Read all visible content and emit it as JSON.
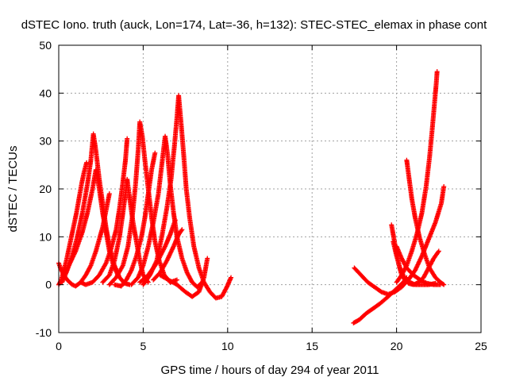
{
  "chart_data": {
    "type": "scatter",
    "title": "dSTEC Iono. truth (auck, Lon=174, Lat=-36, h=132): STEC-STEC_elemax in phase cont",
    "xlabel": "GPS time / hours of day 294 of year 2011",
    "ylabel": "dSTEC  / TECUs",
    "xlim": [
      0,
      25
    ],
    "ylim": [
      -10,
      50
    ],
    "xticks": [
      0,
      5,
      10,
      15,
      20,
      25
    ],
    "yticks": [
      -10,
      0,
      10,
      20,
      30,
      40,
      50
    ],
    "xtick_labels": [
      "0",
      "5",
      "10",
      "15",
      "20",
      "25"
    ],
    "ytick_labels": [
      "-10",
      "0",
      "10",
      "20",
      "30",
      "40",
      "50"
    ],
    "grid": true,
    "legend": "none",
    "marker": "plus",
    "color": "#ff0000",
    "series": [
      {
        "points": [
          [
            0.0,
            4.5
          ],
          [
            0.1,
            3.5
          ],
          [
            0.3,
            2.0
          ],
          [
            0.5,
            1.0
          ],
          [
            0.8,
            0.0
          ],
          [
            1.0,
            -0.3
          ],
          [
            1.3,
            0.5
          ],
          [
            1.6,
            2.0
          ],
          [
            1.9,
            4.0
          ],
          [
            2.2,
            7.0
          ],
          [
            2.4,
            9.5
          ],
          [
            2.6,
            12.0
          ],
          [
            2.8,
            15.5
          ],
          [
            3.0,
            19.0
          ]
        ]
      },
      {
        "points": [
          [
            0.0,
            0.0
          ],
          [
            0.15,
            1.0
          ],
          [
            0.3,
            3.0
          ],
          [
            0.45,
            5.0
          ],
          [
            0.6,
            7.5
          ],
          [
            0.75,
            10.0
          ],
          [
            0.9,
            12.5
          ],
          [
            1.05,
            15.0
          ],
          [
            1.2,
            18.0
          ],
          [
            1.35,
            21.0
          ],
          [
            1.5,
            23.5
          ],
          [
            1.65,
            25.5
          ]
        ]
      },
      {
        "points": [
          [
            0.2,
            0.5
          ],
          [
            0.5,
            3.0
          ],
          [
            0.8,
            6.0
          ],
          [
            1.1,
            10.0
          ],
          [
            1.4,
            15.0
          ],
          [
            1.7,
            21.0
          ],
          [
            1.9,
            26.0
          ],
          [
            2.05,
            31.5
          ],
          [
            2.2,
            28.0
          ],
          [
            2.4,
            22.0
          ],
          [
            2.6,
            17.0
          ],
          [
            2.8,
            12.0
          ],
          [
            3.0,
            8.0
          ],
          [
            3.3,
            4.0
          ],
          [
            3.6,
            1.5
          ],
          [
            3.9,
            0.3
          ],
          [
            4.2,
            0.0
          ]
        ]
      },
      {
        "points": [
          [
            0.3,
            2.0
          ],
          [
            0.6,
            4.0
          ],
          [
            1.0,
            7.0
          ],
          [
            1.4,
            11.0
          ],
          [
            1.7,
            15.0
          ],
          [
            2.0,
            20.0
          ],
          [
            2.2,
            24.0
          ],
          [
            2.4,
            20.0
          ],
          [
            2.6,
            15.0
          ],
          [
            2.8,
            11.0
          ],
          [
            3.0,
            7.0
          ],
          [
            3.2,
            4.5
          ],
          [
            3.5,
            2.0
          ]
        ]
      },
      {
        "points": [
          [
            1.3,
            0.5
          ],
          [
            1.6,
            0.0
          ],
          [
            2.0,
            0.5
          ],
          [
            2.4,
            2.0
          ],
          [
            2.8,
            4.5
          ],
          [
            3.1,
            7.5
          ],
          [
            3.4,
            11.5
          ],
          [
            3.6,
            16.0
          ],
          [
            3.8,
            21.5
          ],
          [
            3.95,
            26.0
          ],
          [
            4.05,
            30.5
          ]
        ]
      },
      {
        "points": [
          [
            2.6,
            0.5
          ],
          [
            3.0,
            2.0
          ],
          [
            3.3,
            5.0
          ],
          [
            3.6,
            10.0
          ],
          [
            3.8,
            15.0
          ],
          [
            3.95,
            19.0
          ],
          [
            4.05,
            22.0
          ],
          [
            4.2,
            18.0
          ],
          [
            4.4,
            13.0
          ],
          [
            4.6,
            9.0
          ],
          [
            4.8,
            5.0
          ],
          [
            5.0,
            2.0
          ],
          [
            5.3,
            0.5
          ]
        ]
      },
      {
        "points": [
          [
            3.0,
            0.0
          ],
          [
            3.4,
            1.5
          ],
          [
            3.8,
            4.0
          ],
          [
            4.1,
            8.0
          ],
          [
            4.35,
            14.0
          ],
          [
            4.55,
            21.0
          ],
          [
            4.7,
            28.0
          ],
          [
            4.8,
            34.0
          ],
          [
            4.95,
            31.0
          ],
          [
            5.1,
            26.0
          ],
          [
            5.3,
            20.0
          ],
          [
            5.5,
            14.0
          ],
          [
            5.7,
            9.0
          ],
          [
            5.95,
            5.0
          ],
          [
            6.25,
            2.0
          ],
          [
            6.6,
            0.5
          ],
          [
            7.0,
            1.0
          ]
        ]
      },
      {
        "points": [
          [
            3.3,
            0.0
          ],
          [
            3.7,
            -0.3
          ],
          [
            4.0,
            1.0
          ],
          [
            4.3,
            3.0
          ],
          [
            4.6,
            6.0
          ],
          [
            4.9,
            10.0
          ],
          [
            5.1,
            14.0
          ],
          [
            5.3,
            19.0
          ],
          [
            5.5,
            24.0
          ],
          [
            5.7,
            27.5
          ]
        ]
      },
      {
        "points": [
          [
            4.3,
            0.0
          ],
          [
            4.7,
            1.5
          ],
          [
            5.0,
            4.0
          ],
          [
            5.3,
            8.0
          ],
          [
            5.6,
            13.0
          ],
          [
            5.9,
            19.0
          ],
          [
            6.1,
            25.0
          ],
          [
            6.3,
            31.0
          ],
          [
            6.45,
            27.0
          ],
          [
            6.6,
            21.0
          ],
          [
            6.8,
            15.0
          ],
          [
            7.0,
            10.0
          ],
          [
            7.3,
            5.5
          ],
          [
            7.6,
            2.5
          ],
          [
            7.9,
            0.5
          ],
          [
            8.2,
            -0.5
          ],
          [
            8.5,
            0.5
          ]
        ]
      },
      {
        "points": [
          [
            4.8,
            0.5
          ],
          [
            5.3,
            2.0
          ],
          [
            5.8,
            4.5
          ],
          [
            6.3,
            8.0
          ],
          [
            6.6,
            10.5
          ],
          [
            6.9,
            13.5
          ]
        ]
      },
      {
        "points": [
          [
            5.0,
            0.0
          ],
          [
            5.4,
            2.0
          ],
          [
            5.8,
            5.0
          ],
          [
            6.1,
            10.0
          ],
          [
            6.4,
            16.0
          ],
          [
            6.65,
            22.0
          ],
          [
            6.85,
            29.0
          ],
          [
            7.0,
            35.0
          ],
          [
            7.1,
            39.5
          ],
          [
            7.25,
            33.5
          ],
          [
            7.4,
            27.0
          ],
          [
            7.55,
            20.0
          ],
          [
            7.75,
            14.0
          ],
          [
            8.0,
            8.0
          ],
          [
            8.3,
            3.5
          ],
          [
            8.6,
            0.5
          ],
          [
            8.95,
            -1.5
          ],
          [
            9.3,
            -2.8
          ],
          [
            9.65,
            -2.5
          ],
          [
            9.95,
            -0.5
          ],
          [
            10.2,
            1.5
          ]
        ]
      },
      {
        "points": [
          [
            5.6,
            1.0
          ],
          [
            6.0,
            2.5
          ],
          [
            6.4,
            5.0
          ],
          [
            6.8,
            8.0
          ],
          [
            7.1,
            10.5
          ],
          [
            7.3,
            11.5
          ]
        ]
      },
      {
        "points": [
          [
            6.0,
            2.0
          ],
          [
            6.5,
            1.0
          ],
          [
            7.0,
            0.0
          ],
          [
            7.5,
            -1.5
          ],
          [
            7.9,
            -2.5
          ],
          [
            8.3,
            -1.5
          ],
          [
            8.6,
            1.5
          ],
          [
            8.8,
            5.5
          ]
        ]
      },
      {
        "points": [
          [
            17.45,
            -8.0
          ],
          [
            17.8,
            -7.3
          ],
          [
            18.2,
            -6.0
          ],
          [
            18.6,
            -5.0
          ],
          [
            19.0,
            -4.0
          ],
          [
            19.4,
            -2.8
          ],
          [
            19.8,
            -1.5
          ],
          [
            20.1,
            -0.5
          ],
          [
            20.4,
            0.5
          ],
          [
            20.6,
            1.5
          ]
        ]
      },
      {
        "points": [
          [
            17.5,
            3.5
          ],
          [
            17.9,
            2.0
          ],
          [
            18.3,
            0.5
          ],
          [
            18.7,
            -0.5
          ],
          [
            19.1,
            -1.5
          ],
          [
            19.5,
            -2.0
          ],
          [
            19.9,
            -1.5
          ],
          [
            20.3,
            -0.5
          ],
          [
            20.7,
            1.0
          ],
          [
            21.1,
            3.0
          ],
          [
            21.5,
            6.0
          ],
          [
            21.9,
            9.5
          ],
          [
            22.3,
            13.0
          ],
          [
            22.65,
            17.0
          ],
          [
            22.8,
            20.5
          ]
        ]
      },
      {
        "points": [
          [
            19.7,
            12.5
          ],
          [
            19.85,
            9.5
          ],
          [
            20.0,
            6.5
          ],
          [
            20.15,
            4.0
          ],
          [
            20.3,
            2.0
          ],
          [
            20.5,
            1.0
          ],
          [
            20.8,
            0.5
          ],
          [
            21.1,
            0.0
          ],
          [
            21.5,
            0.0
          ],
          [
            21.9,
            0.0
          ],
          [
            22.3,
            0.3
          ]
        ]
      },
      {
        "points": [
          [
            19.8,
            9.0
          ],
          [
            20.0,
            6.0
          ],
          [
            20.2,
            3.5
          ],
          [
            20.45,
            1.5
          ],
          [
            20.7,
            0.3
          ],
          [
            21.0,
            0.0
          ],
          [
            21.3,
            0.5
          ],
          [
            21.6,
            1.5
          ],
          [
            21.9,
            3.5
          ],
          [
            22.2,
            5.5
          ],
          [
            22.5,
            7.0
          ]
        ]
      },
      {
        "points": [
          [
            20.0,
            0.5
          ],
          [
            20.3,
            2.0
          ],
          [
            20.6,
            4.0
          ],
          [
            20.9,
            7.0
          ],
          [
            21.2,
            10.5
          ],
          [
            21.5,
            15.0
          ],
          [
            21.75,
            20.5
          ],
          [
            21.95,
            26.5
          ],
          [
            22.1,
            32.0
          ],
          [
            22.25,
            38.0
          ],
          [
            22.35,
            42.0
          ],
          [
            22.4,
            44.5
          ]
        ]
      },
      {
        "points": [
          [
            20.6,
            26.0
          ],
          [
            20.75,
            22.0
          ],
          [
            20.9,
            18.0
          ],
          [
            21.1,
            14.0
          ],
          [
            21.35,
            10.0
          ],
          [
            21.65,
            6.5
          ],
          [
            21.95,
            3.5
          ],
          [
            22.3,
            1.5
          ],
          [
            22.6,
            0.5
          ],
          [
            22.8,
            0.0
          ]
        ]
      },
      {
        "points": [
          [
            20.0,
            8.0
          ],
          [
            20.3,
            5.5
          ],
          [
            20.6,
            3.5
          ],
          [
            21.0,
            2.0
          ],
          [
            21.4,
            1.0
          ],
          [
            21.8,
            0.3
          ],
          [
            22.2,
            0.0
          ],
          [
            22.6,
            0.0
          ]
        ]
      }
    ]
  }
}
